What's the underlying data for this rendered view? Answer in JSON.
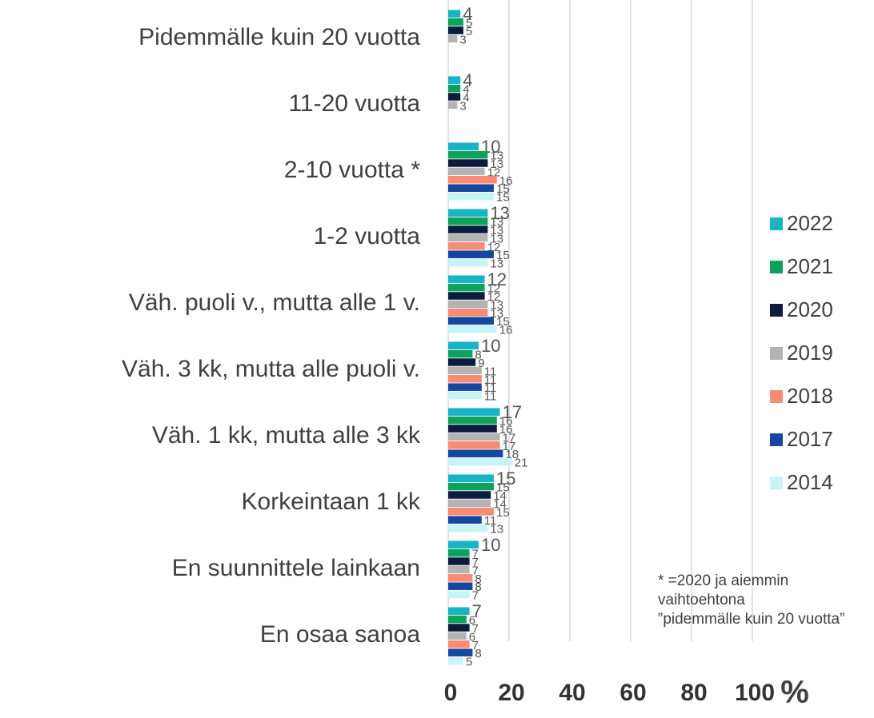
{
  "chart_data": {
    "type": "bar",
    "orientation": "horizontal",
    "categories": [
      "Pidemmälle kuin 20 vuotta",
      "11-20 vuotta",
      "2-10 vuotta *",
      "1-2 vuotta",
      "Väh. puoli v., mutta alle 1 v.",
      "Väh. 3 kk, mutta alle puoli v.",
      "Väh. 1 kk, mutta alle 3 kk",
      "Korkeintaan 1 kk",
      "En suunnittele lainkaan",
      "En osaa sanoa"
    ],
    "series": [
      {
        "name": "2022",
        "color": "#17b3c7",
        "values": [
          4,
          4,
          10,
          13,
          12,
          10,
          17,
          15,
          10,
          7
        ]
      },
      {
        "name": "2021",
        "color": "#0aa35a",
        "values": [
          5,
          4,
          13,
          13,
          12,
          8,
          16,
          15,
          7,
          6
        ]
      },
      {
        "name": "2020",
        "color": "#0b1c3d",
        "values": [
          5,
          4,
          13,
          13,
          12,
          9,
          16,
          14,
          7,
          7
        ]
      },
      {
        "name": "2019",
        "color": "#b3b3b3",
        "values": [
          3,
          3,
          12,
          13,
          13,
          11,
          17,
          14,
          7,
          6
        ]
      },
      {
        "name": "2018",
        "color": "#fa8a72",
        "values": [
          null,
          null,
          16,
          12,
          13,
          11,
          17,
          15,
          8,
          7
        ]
      },
      {
        "name": "2017",
        "color": "#1447a0",
        "values": [
          null,
          null,
          15,
          15,
          15,
          11,
          18,
          11,
          8,
          8
        ]
      },
      {
        "name": "2014",
        "color": "#c8f4f8",
        "values": [
          null,
          null,
          15,
          13,
          16,
          11,
          21,
          13,
          7,
          5
        ]
      }
    ],
    "xlim": [
      0,
      100
    ],
    "xticks": [
      0,
      20,
      40,
      60,
      80,
      100
    ],
    "x_unit": "%",
    "grid": true,
    "legend": "right",
    "footnote": [
      "* =2020 ja aiemmin",
      "vaihtoehtona",
      "”pidemmälle kuin 20 vuotta”"
    ]
  }
}
